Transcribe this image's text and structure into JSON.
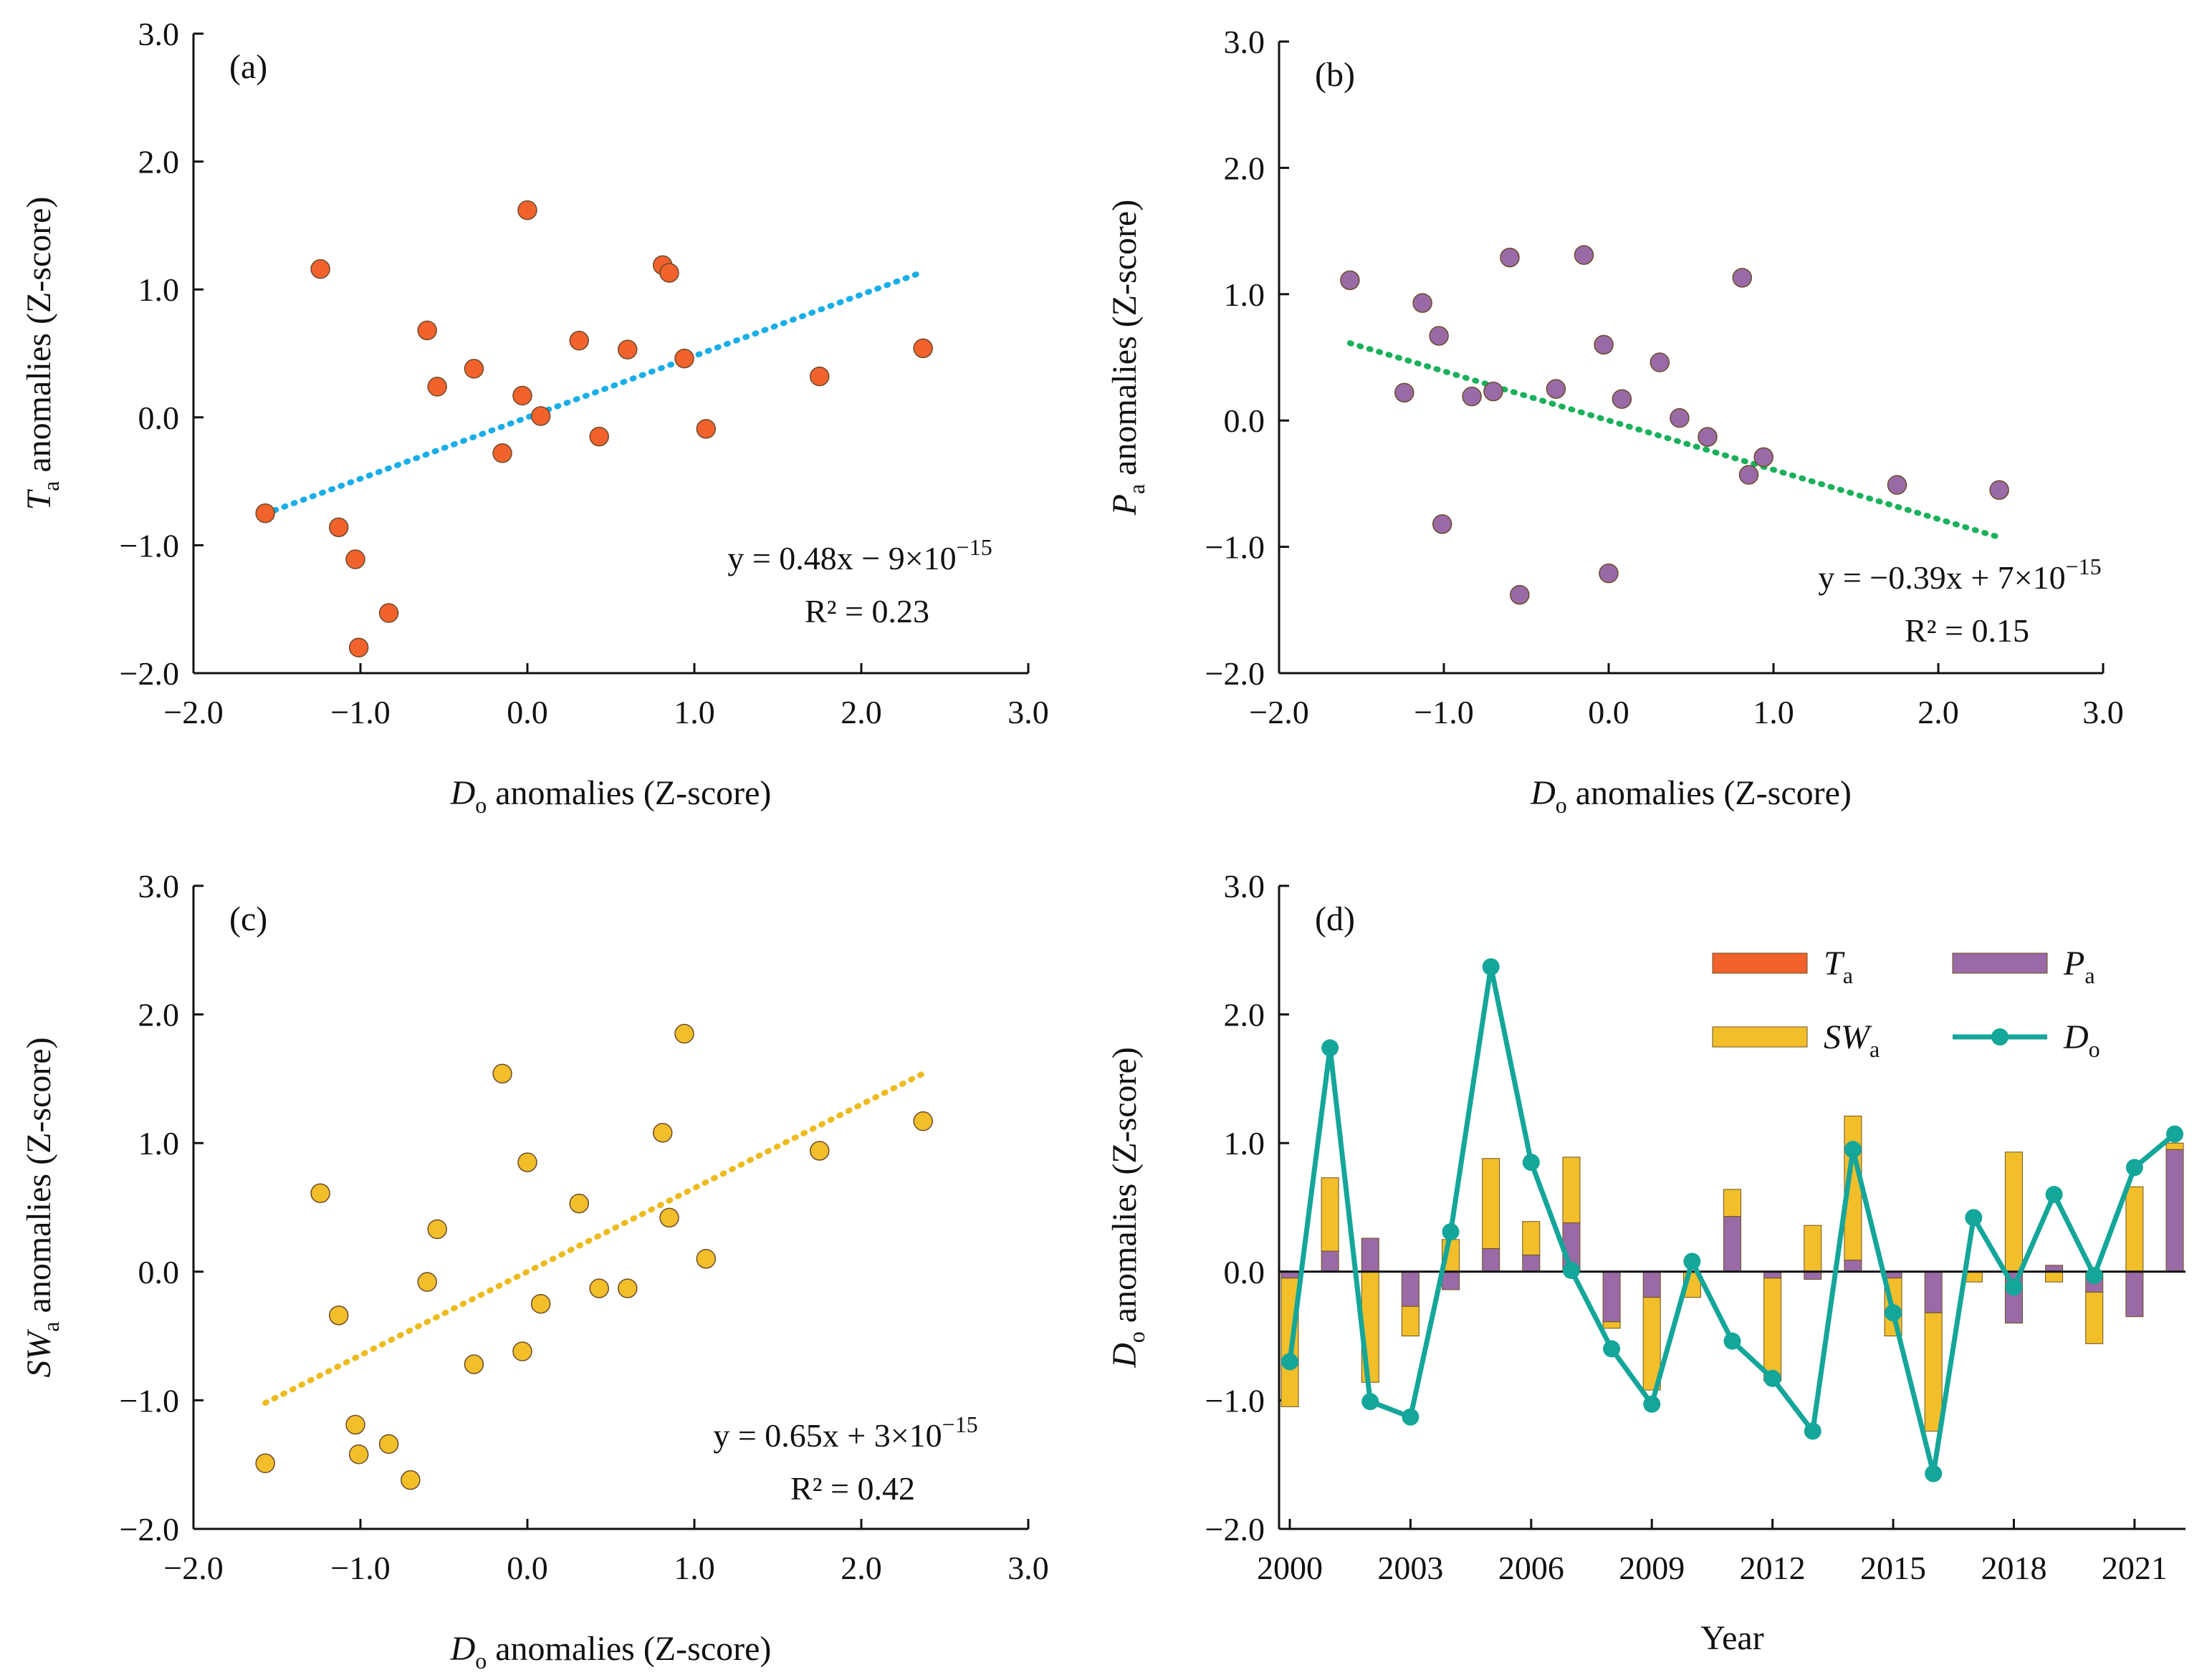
{
  "colors": {
    "ta": "#F1622D",
    "pa": "#9A6AA6",
    "sw": "#F2BF2B",
    "do": "#14A69A",
    "fit_a": "#1AAEE8",
    "fit_b": "#1BB05C",
    "fit_c": "#EDBB1E",
    "axis": "#111111"
  },
  "chart_data": [
    {
      "id": "a",
      "type": "scatter",
      "panel_label": "(a)",
      "xlabel": {
        "main": "D",
        "sub": "o",
        "rest": " anomalies (Z-score)"
      },
      "ylabel": {
        "main": "T",
        "sub": "a",
        "rest": " anomalies (Z-score)"
      },
      "xlim": [
        -2,
        3
      ],
      "ylim": [
        -2,
        3
      ],
      "xticks": [
        -2,
        -1,
        0,
        1,
        2,
        3
      ],
      "yticks": [
        -2,
        -1,
        0,
        1,
        2,
        3
      ],
      "xtick_labels": [
        "−2.0",
        "−1.0",
        "0.0",
        "1.0",
        "2.0",
        "3.0"
      ],
      "ytick_labels": [
        "−2.0",
        "−1.0",
        "0.0",
        "1.0",
        "2.0",
        "3.0"
      ],
      "points": [
        [
          -1.57,
          -0.75
        ],
        [
          -1.24,
          1.16
        ],
        [
          -1.13,
          -0.86
        ],
        [
          -1.03,
          -1.11
        ],
        [
          -1.01,
          -1.8
        ],
        [
          -0.83,
          -1.53
        ],
        [
          -0.6,
          0.68
        ],
        [
          -0.54,
          0.24
        ],
        [
          -0.32,
          0.38
        ],
        [
          -0.15,
          -0.28
        ],
        [
          -0.03,
          0.17
        ],
        [
          0.0,
          1.62
        ],
        [
          0.08,
          0.01
        ],
        [
          0.31,
          0.6
        ],
        [
          0.43,
          -0.15
        ],
        [
          0.6,
          0.53
        ],
        [
          0.81,
          1.19
        ],
        [
          0.85,
          1.13
        ],
        [
          0.94,
          0.46
        ],
        [
          1.07,
          -0.09
        ],
        [
          1.75,
          0.32
        ],
        [
          2.37,
          0.54
        ]
      ],
      "trendline": {
        "x": [
          -1.57,
          2.37
        ],
        "slope": 0.48,
        "intercept": 0.0
      },
      "equation": "y = 0.48x − 9×10",
      "equation_exp": "−15",
      "r2": "R² = 0.23"
    },
    {
      "id": "b",
      "type": "scatter",
      "panel_label": "(b)",
      "xlabel": {
        "main": "D",
        "sub": "o",
        "rest": " anomalies (Z-score)"
      },
      "ylabel": {
        "main": "P",
        "sub": "a",
        "rest": " anomalies (Z-score)"
      },
      "xlim": [
        -2,
        3
      ],
      "ylim": [
        -2,
        3
      ],
      "xticks": [
        -2,
        -1,
        0,
        1,
        2,
        3
      ],
      "yticks": [
        -2,
        -1,
        0,
        1,
        2,
        3
      ],
      "xtick_labels": [
        "−2.0",
        "−1.0",
        "0.0",
        "1.0",
        "2.0",
        "3.0"
      ],
      "ytick_labels": [
        "−2.0",
        "−1.0",
        "0.0",
        "1.0",
        "2.0",
        "3.0"
      ],
      "points": [
        [
          -1.57,
          1.11
        ],
        [
          -1.24,
          0.22
        ],
        [
          -1.13,
          0.93
        ],
        [
          -1.03,
          0.67
        ],
        [
          -1.01,
          -0.82
        ],
        [
          -0.83,
          0.19
        ],
        [
          -0.7,
          0.23
        ],
        [
          -0.6,
          1.29
        ],
        [
          -0.54,
          -1.38
        ],
        [
          -0.32,
          0.25
        ],
        [
          -0.15,
          1.31
        ],
        [
          -0.03,
          0.6
        ],
        [
          0.0,
          -1.21
        ],
        [
          0.08,
          0.17
        ],
        [
          0.31,
          0.46
        ],
        [
          0.43,
          0.02
        ],
        [
          0.6,
          -0.13
        ],
        [
          0.81,
          1.13
        ],
        [
          0.85,
          -0.43
        ],
        [
          0.94,
          -0.29
        ],
        [
          1.75,
          -0.51
        ],
        [
          2.37,
          -0.55
        ]
      ],
      "trendline": {
        "x": [
          -1.57,
          2.37
        ],
        "slope": -0.39,
        "intercept": 0.0
      },
      "equation": "y = −0.39x + 7×10",
      "equation_exp": "−15",
      "r2": "R² = 0.15"
    },
    {
      "id": "c",
      "type": "scatter",
      "panel_label": "(c)",
      "xlabel": {
        "main": "D",
        "sub": "o",
        "rest": " anomalies (Z-score)"
      },
      "ylabel": {
        "main": "SW",
        "sub": "a",
        "rest": " anomalies (Z-score)"
      },
      "xlim": [
        -2,
        3
      ],
      "ylim": [
        -2,
        3
      ],
      "xticks": [
        -2,
        -1,
        0,
        1,
        2,
        3
      ],
      "yticks": [
        -2,
        -1,
        0,
        1,
        2,
        3
      ],
      "xtick_labels": [
        "−2.0",
        "−1.0",
        "0.0",
        "1.0",
        "2.0",
        "3.0"
      ],
      "ytick_labels": [
        "−2.0",
        "−1.0",
        "0.0",
        "1.0",
        "2.0",
        "3.0"
      ],
      "points": [
        [
          -1.57,
          -1.49
        ],
        [
          -1.24,
          0.61
        ],
        [
          -1.13,
          -0.34
        ],
        [
          -1.03,
          -1.19
        ],
        [
          -1.01,
          -1.42
        ],
        [
          -0.83,
          -1.34
        ],
        [
          -0.7,
          -1.62
        ],
        [
          -0.6,
          -0.08
        ],
        [
          -0.54,
          0.33
        ],
        [
          -0.32,
          -0.72
        ],
        [
          -0.15,
          1.54
        ],
        [
          -0.03,
          -0.62
        ],
        [
          0.0,
          0.85
        ],
        [
          0.08,
          -0.25
        ],
        [
          0.31,
          0.53
        ],
        [
          0.43,
          -0.13
        ],
        [
          0.6,
          -0.13
        ],
        [
          0.81,
          1.08
        ],
        [
          0.85,
          0.42
        ],
        [
          0.94,
          1.85
        ],
        [
          1.07,
          0.1
        ],
        [
          1.75,
          0.94
        ],
        [
          2.37,
          1.17
        ]
      ],
      "trendline": {
        "x": [
          -1.57,
          2.37
        ],
        "slope": 0.65,
        "intercept": 0.0
      },
      "equation": "y = 0.65x + 3×10",
      "equation_exp": "−15",
      "r2": "R² = 0.42"
    },
    {
      "id": "d",
      "type": "bar",
      "subtype": "stacked-bar-with-line",
      "panel_label": "(d)",
      "xlabel": "Year",
      "ylabel": {
        "main": "D",
        "sub": "o",
        "rest": " anomalies (Z-score)"
      },
      "ylim": [
        -2,
        3
      ],
      "yticks": [
        -2,
        -1,
        0,
        1,
        2,
        3
      ],
      "ytick_labels": [
        "−2.0",
        "−1.0",
        "0.0",
        "1.0",
        "2.0",
        "3.0"
      ],
      "years": [
        2000,
        2001,
        2002,
        2003,
        2004,
        2005,
        2006,
        2007,
        2008,
        2009,
        2010,
        2011,
        2012,
        2013,
        2014,
        2015,
        2016,
        2017,
        2018,
        2019,
        2020,
        2021,
        2022
      ],
      "xtick_labels": [
        "2000",
        "2003",
        "2006",
        "2009",
        "2012",
        "2015",
        "2018",
        "2021"
      ],
      "xtick_years": [
        2000,
        2003,
        2006,
        2009,
        2012,
        2015,
        2018,
        2021
      ],
      "series": [
        {
          "name": "T",
          "sub": "a",
          "key": "ta",
          "values": [
            0,
            0,
            0,
            0,
            0,
            0,
            0,
            0,
            0,
            0,
            0,
            0,
            0,
            0,
            0,
            0,
            0,
            0,
            0,
            0,
            0,
            0,
            0
          ]
        },
        {
          "name": "P",
          "sub": "a",
          "key": "pa",
          "values": [
            -0.05,
            0.16,
            0.26,
            -0.27,
            -0.14,
            0.18,
            0.13,
            0.38,
            -0.39,
            -0.2,
            0.0,
            0.43,
            -0.05,
            -0.06,
            0.09,
            -0.05,
            -0.32,
            0.0,
            -0.4,
            0.05,
            -0.16,
            -0.35,
            0.95
          ]
        },
        {
          "name": "SW",
          "sub": "a",
          "key": "sw",
          "values": [
            -1.0,
            0.57,
            -0.86,
            -0.23,
            0.25,
            0.7,
            0.26,
            0.51,
            -0.05,
            -0.72,
            -0.2,
            0.21,
            -0.8,
            0.36,
            1.12,
            -0.45,
            -0.92,
            -0.08,
            0.93,
            -0.08,
            -0.4,
            0.66,
            0.05
          ]
        },
        {
          "name": "D",
          "sub": "o",
          "key": "do",
          "type": "line",
          "values": [
            -0.7,
            1.74,
            -1.01,
            -1.13,
            0.31,
            2.37,
            0.85,
            0.01,
            -0.6,
            -1.03,
            0.08,
            -0.54,
            -0.83,
            -1.24,
            0.95,
            -0.32,
            -1.57,
            0.42,
            -0.12,
            0.6,
            -0.03,
            0.81,
            1.07
          ]
        }
      ],
      "legend_position": "top-right"
    }
  ]
}
